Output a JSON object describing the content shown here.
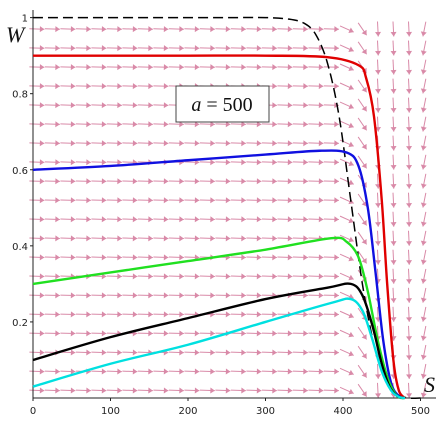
{
  "chart_data": {
    "type": "line",
    "xlabel": "S",
    "ylabel": "W",
    "xlim": [
      0,
      520
    ],
    "ylim": [
      0,
      1.02
    ],
    "x_ticks": [
      0,
      100,
      200,
      300,
      400,
      500
    ],
    "y_ticks": [
      0.2,
      0.4,
      0.6,
      0.8,
      1
    ],
    "annotation": {
      "variable": "a",
      "equals": " = ",
      "value": "500"
    },
    "grid": false,
    "legend": "none",
    "direction_field": {
      "color": "#d98aa8",
      "x_step": 20,
      "y_step": 0.05
    },
    "series": [
      {
        "color": "#000000",
        "dash": true,
        "x": [
          0,
          150,
          250,
          300,
          330,
          350,
          365,
          380,
          395,
          410,
          425,
          440,
          455,
          470,
          485,
          500
        ],
        "y": [
          1.0,
          1.0,
          1.0,
          1.0,
          0.996,
          0.985,
          0.955,
          0.88,
          0.74,
          0.52,
          0.3,
          0.14,
          0.05,
          0.01,
          0.0,
          0.0
        ]
      },
      {
        "color": "#e00000",
        "dash": false,
        "x": [
          0,
          100,
          200,
          300,
          380,
          420,
          430,
          440,
          450,
          457,
          465,
          472,
          480
        ],
        "y": [
          0.9,
          0.9,
          0.9,
          0.9,
          0.896,
          0.875,
          0.84,
          0.74,
          0.52,
          0.3,
          0.1,
          0.02,
          0.0
        ]
      },
      {
        "color": "#1010e0",
        "dash": false,
        "x": [
          0,
          100,
          200,
          300,
          370,
          405,
          420,
          432,
          442,
          452,
          462,
          472,
          480
        ],
        "y": [
          0.6,
          0.61,
          0.625,
          0.64,
          0.65,
          0.645,
          0.61,
          0.5,
          0.33,
          0.15,
          0.04,
          0.005,
          0.0
        ]
      },
      {
        "color": "#20e020",
        "dash": false,
        "x": [
          0,
          100,
          200,
          300,
          385,
          405,
          420,
          432,
          445,
          458,
          470,
          480
        ],
        "y": [
          0.3,
          0.33,
          0.36,
          0.39,
          0.42,
          0.41,
          0.37,
          0.28,
          0.15,
          0.05,
          0.005,
          0.0
        ]
      },
      {
        "color": "#000000",
        "dash": false,
        "x": [
          0,
          100,
          200,
          300,
          380,
          410,
          425,
          438,
          450,
          460,
          470,
          478
        ],
        "y": [
          0.1,
          0.16,
          0.21,
          0.26,
          0.29,
          0.3,
          0.27,
          0.19,
          0.09,
          0.03,
          0.005,
          0.0
        ]
      },
      {
        "color": "#00e0e0",
        "dash": false,
        "x": [
          0,
          100,
          200,
          300,
          385,
          410,
          425,
          437,
          450,
          462,
          472,
          480
        ],
        "y": [
          0.03,
          0.09,
          0.14,
          0.2,
          0.25,
          0.26,
          0.23,
          0.16,
          0.07,
          0.02,
          0.003,
          0.0
        ]
      }
    ]
  }
}
